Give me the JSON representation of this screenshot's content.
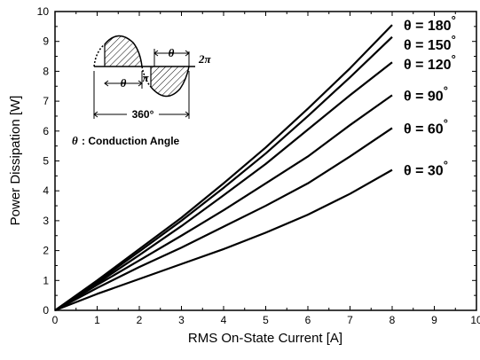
{
  "chart_data": {
    "type": "line",
    "title": "",
    "xlabel": "RMS On-State Current [A]",
    "ylabel": "Power Dissipation [W]",
    "xlim": [
      0,
      10
    ],
    "ylim": [
      0,
      10
    ],
    "x_ticks": [
      "0",
      "1",
      "2",
      "3",
      "4",
      "5",
      "6",
      "7",
      "8",
      "9",
      "10"
    ],
    "y_ticks": [
      "0",
      "1",
      "2",
      "3",
      "4",
      "5",
      "6",
      "7",
      "8",
      "9",
      "10"
    ],
    "grid": false,
    "series": [
      {
        "name": "θ = 180°",
        "x": [
          0,
          1,
          2,
          3,
          4,
          5,
          6,
          7,
          8
        ],
        "y": [
          0,
          1.0,
          2.05,
          3.1,
          4.25,
          5.45,
          6.75,
          8.1,
          9.55
        ]
      },
      {
        "name": "θ = 150°",
        "x": [
          0,
          1,
          2,
          3,
          4,
          5,
          6,
          7,
          8
        ],
        "y": [
          0,
          0.95,
          1.97,
          3.0,
          4.1,
          5.25,
          6.5,
          7.8,
          9.15
        ]
      },
      {
        "name": "θ = 120°",
        "x": [
          0,
          1,
          2,
          3,
          4,
          5,
          6,
          7,
          8
        ],
        "y": [
          0,
          0.9,
          1.85,
          2.82,
          3.85,
          4.9,
          6.05,
          7.2,
          8.3
        ]
      },
      {
        "name": "θ = 90°",
        "x": [
          0,
          1,
          2,
          3,
          4,
          5,
          6,
          7,
          8
        ],
        "y": [
          0,
          0.85,
          1.67,
          2.5,
          3.35,
          4.25,
          5.15,
          6.2,
          7.2
        ]
      },
      {
        "name": "θ = 60°",
        "x": [
          0,
          1,
          2,
          3,
          4,
          5,
          6,
          7,
          8
        ],
        "y": [
          0,
          0.75,
          1.45,
          2.1,
          2.8,
          3.5,
          4.25,
          5.15,
          6.1
        ]
      },
      {
        "name": "θ = 30°",
        "x": [
          0,
          1,
          2,
          3,
          4,
          5,
          6,
          7,
          8
        ],
        "y": [
          0,
          0.55,
          1.05,
          1.55,
          2.05,
          2.6,
          3.2,
          3.9,
          4.7
        ]
      }
    ],
    "series_labels": [
      {
        "theta": "θ",
        "text": "= 180",
        "unit": "°"
      },
      {
        "theta": "θ",
        "text": "= 150",
        "unit": "°"
      },
      {
        "theta": "θ",
        "text": "= 120",
        "unit": "°"
      },
      {
        "theta": "θ",
        "text": "= 90",
        "unit": "°"
      },
      {
        "theta": "θ",
        "text": "= 60",
        "unit": "°"
      },
      {
        "theta": "θ",
        "text": "= 30",
        "unit": "°"
      }
    ],
    "inset": {
      "theta_symbol": "θ",
      "pi_label": "π",
      "two_pi_label": "2π",
      "span_label": "360°",
      "caption": ": Conduction Angle"
    }
  }
}
